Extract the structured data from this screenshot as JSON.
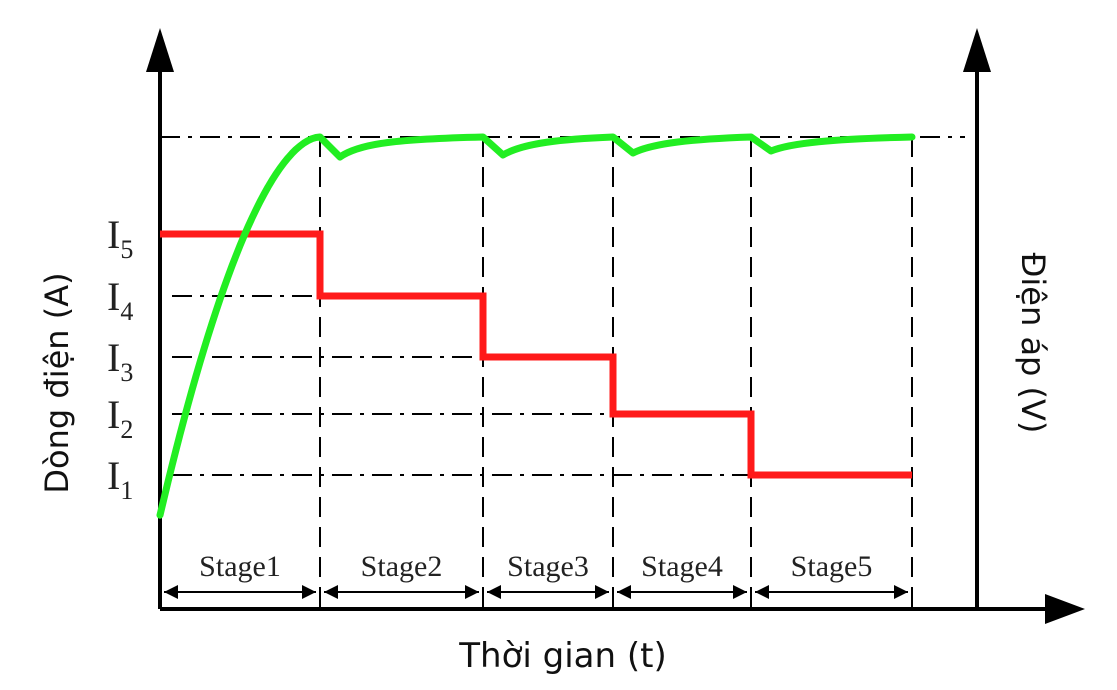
{
  "chart_data": {
    "type": "line",
    "xlabel": "Thời gian (t)",
    "ylabel": "Dòng điện (A)",
    "ylabel_right": "Điện áp (V)",
    "y_levels": [
      {
        "name": "I",
        "sub": "5",
        "value": 5
      },
      {
        "name": "I",
        "sub": "4",
        "value": 4
      },
      {
        "name": "I",
        "sub": "3",
        "value": 3
      },
      {
        "name": "I",
        "sub": "2",
        "value": 2
      },
      {
        "name": "I",
        "sub": "1",
        "value": 1
      }
    ],
    "stages": [
      "Stage1",
      "Stage2",
      "Stage3",
      "Stage4",
      "Stage5"
    ],
    "stage_boundaries": [
      0,
      1,
      2,
      3,
      4,
      5
    ],
    "series": [
      {
        "color": "#ff1a1a",
        "description_key": "current",
        "steps": [
          {
            "x0": 0,
            "x1": 1,
            "level": 5
          },
          {
            "x0": 1,
            "x1": 2,
            "level": 4
          },
          {
            "x0": 2,
            "x1": 3,
            "level": 3
          },
          {
            "x0": 3,
            "x1": 4,
            "level": 2
          },
          {
            "x0": 4,
            "x1": 5,
            "level": 1
          }
        ]
      },
      {
        "color": "#22ee22",
        "description_key": "voltage",
        "start_level": 0.7,
        "max_level": 6.5,
        "dip": 0.4
      }
    ],
    "grid": false,
    "legend": "none"
  }
}
